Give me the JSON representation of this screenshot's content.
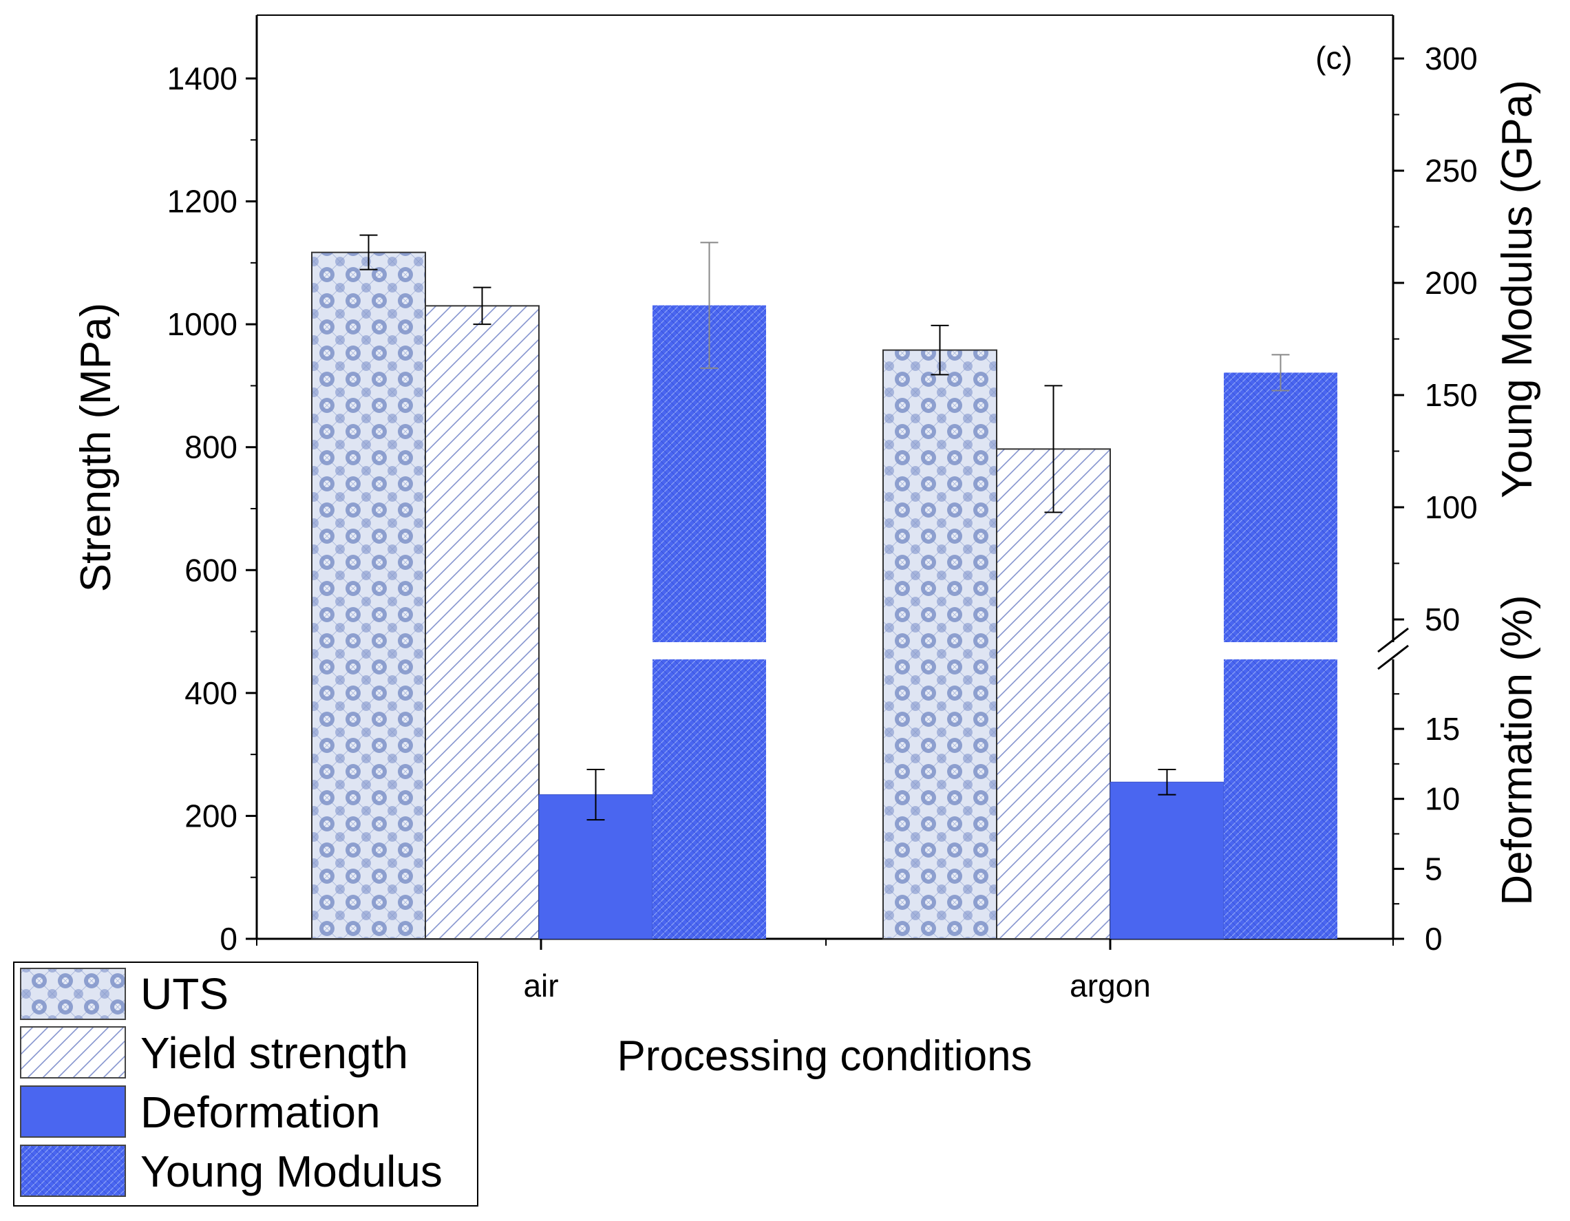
{
  "chart_data": {
    "type": "bar",
    "panel_label": "(c)",
    "categories": [
      "air",
      "argon"
    ],
    "xlabel": "Processing conditions",
    "ylabel_left": "Strength (MPa)",
    "ylabel_right_top": "Young Modulus (GPa)",
    "ylabel_right_bottom": "Deformation (%)",
    "ylim_left": [
      0,
      1500
    ],
    "yticks_left": [
      "0",
      "200",
      "400",
      "600",
      "800",
      "1000",
      "1200",
      "1400"
    ],
    "yticks_right_top": [
      "50",
      "100",
      "150",
      "200",
      "250",
      "300"
    ],
    "yticks_right_bottom": [
      "0",
      "5",
      "10",
      "15"
    ],
    "right_axis_break": {
      "lower_segment_range": [
        0,
        19
      ],
      "upper_segment_range": [
        45,
        310
      ]
    },
    "series": [
      {
        "name": "UTS",
        "axis": "left",
        "unit": "MPa",
        "values": [
          1117,
          958
        ],
        "errors": [
          28,
          40
        ],
        "color": "#9fb0d8",
        "pattern": "crosshatch"
      },
      {
        "name": "Yield strength",
        "axis": "left",
        "unit": "MPa",
        "values": [
          1030,
          797
        ],
        "errors": [
          30,
          103
        ],
        "color": "#ffffff",
        "pattern": "diagonal"
      },
      {
        "name": "Deformation",
        "axis": "right_bottom",
        "unit": "%",
        "values": [
          10.3,
          11.2
        ],
        "errors": [
          1.8,
          0.9
        ],
        "color": "#4a66f0",
        "pattern": "solid"
      },
      {
        "name": "Young Modulus",
        "axis": "right_top",
        "unit": "GPa",
        "values": [
          190,
          160
        ],
        "errors": [
          28,
          8
        ],
        "color": "#4a66f0",
        "pattern": "dense-hatch"
      }
    ]
  }
}
